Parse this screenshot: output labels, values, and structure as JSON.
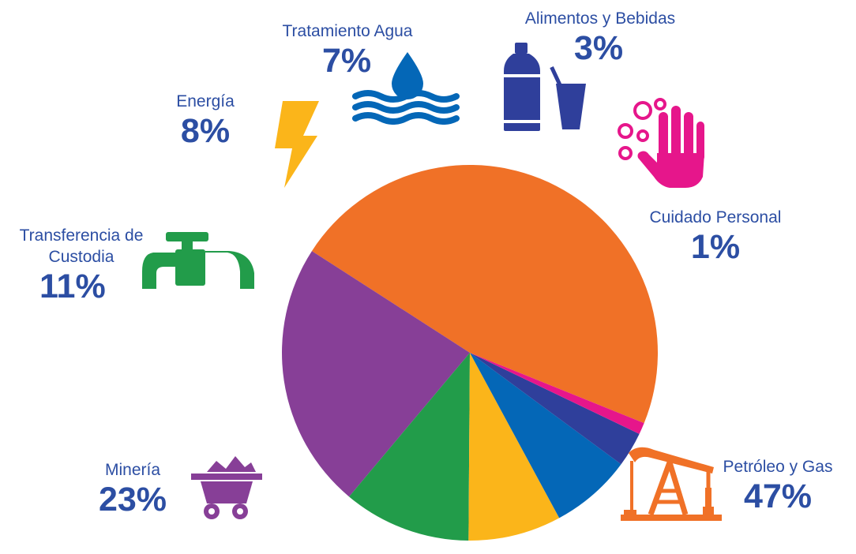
{
  "chart_data": {
    "type": "pie",
    "title": "",
    "slices": [
      {
        "label": "Petróleo y Gas",
        "value": 47,
        "value_label": "47%",
        "color": "#f07127",
        "icon": "oil-pump-icon"
      },
      {
        "label": "Minería",
        "value": 23,
        "value_label": "23%",
        "color": "#873f97",
        "icon": "mine-cart-icon"
      },
      {
        "label": "Transferencia de Custodia",
        "value": 11,
        "value_label": "11%",
        "color": "#229c4a",
        "icon": "pipeline-valve-icon"
      },
      {
        "label": "Energía",
        "value": 8,
        "value_label": "8%",
        "color": "#fbb51a",
        "icon": "lightning-bolt-icon"
      },
      {
        "label": "Tratamiento Agua",
        "value": 7,
        "value_label": "7%",
        "color": "#0467b7",
        "icon": "water-drop-icon"
      },
      {
        "label": "Alimentos y Bebidas",
        "value": 3,
        "value_label": "3%",
        "color": "#2f3f9b",
        "icon": "bottle-cup-icon"
      },
      {
        "label": "Cuidado Personal",
        "value": 1,
        "value_label": "1%",
        "color": "#e6168b",
        "icon": "hand-bubbles-icon"
      }
    ],
    "label_color": "#2c4ea3"
  }
}
